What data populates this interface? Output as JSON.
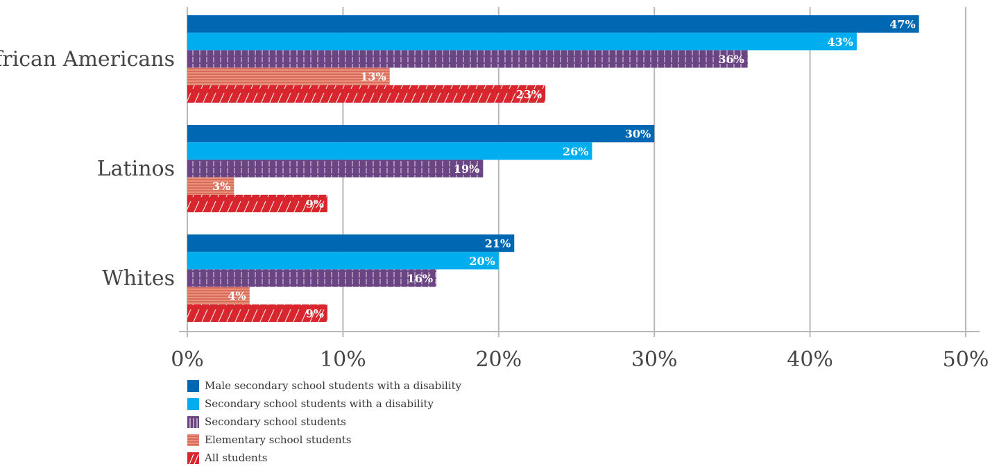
{
  "chart_data": {
    "type": "bar",
    "orientation": "horizontal",
    "categories": [
      "African Americans",
      "Latinos",
      "Whites"
    ],
    "series": [
      {
        "name": "Male secondary school students with a disability",
        "values": [
          47,
          30,
          21
        ],
        "color": "#0068b3",
        "pattern": "solid"
      },
      {
        "name": "Secondary school students with a disability",
        "values": [
          43,
          26,
          20
        ],
        "color": "#00aeef",
        "pattern": "solid"
      },
      {
        "name": "Secondary school students",
        "values": [
          36,
          19,
          16
        ],
        "color": "#6b4583",
        "pattern": "vertical-lines"
      },
      {
        "name": "Elementary school students",
        "values": [
          13,
          3,
          4
        ],
        "color": "#e8907a",
        "pattern": "horizontal-lines"
      },
      {
        "name": "All students",
        "values": [
          23,
          9,
          9
        ],
        "color": "#d7262e",
        "pattern": "diagonal-lines"
      }
    ],
    "data_labels": [
      [
        "47%",
        "30%",
        "21%"
      ],
      [
        "43%",
        "26%",
        "20%"
      ],
      [
        "36%",
        "19%",
        "16%"
      ],
      [
        "13%",
        "3%",
        "4%"
      ],
      [
        "23%",
        "9%",
        "9%"
      ]
    ],
    "xlim": [
      0,
      50
    ],
    "x_ticks": [
      0,
      10,
      20,
      30,
      40,
      50
    ],
    "x_tick_labels": [
      "0%",
      "10%",
      "20%",
      "30%",
      "40%",
      "50%"
    ],
    "grid": true,
    "legend_position": "bottom-left",
    "title": "",
    "xlabel": "",
    "ylabel": ""
  }
}
